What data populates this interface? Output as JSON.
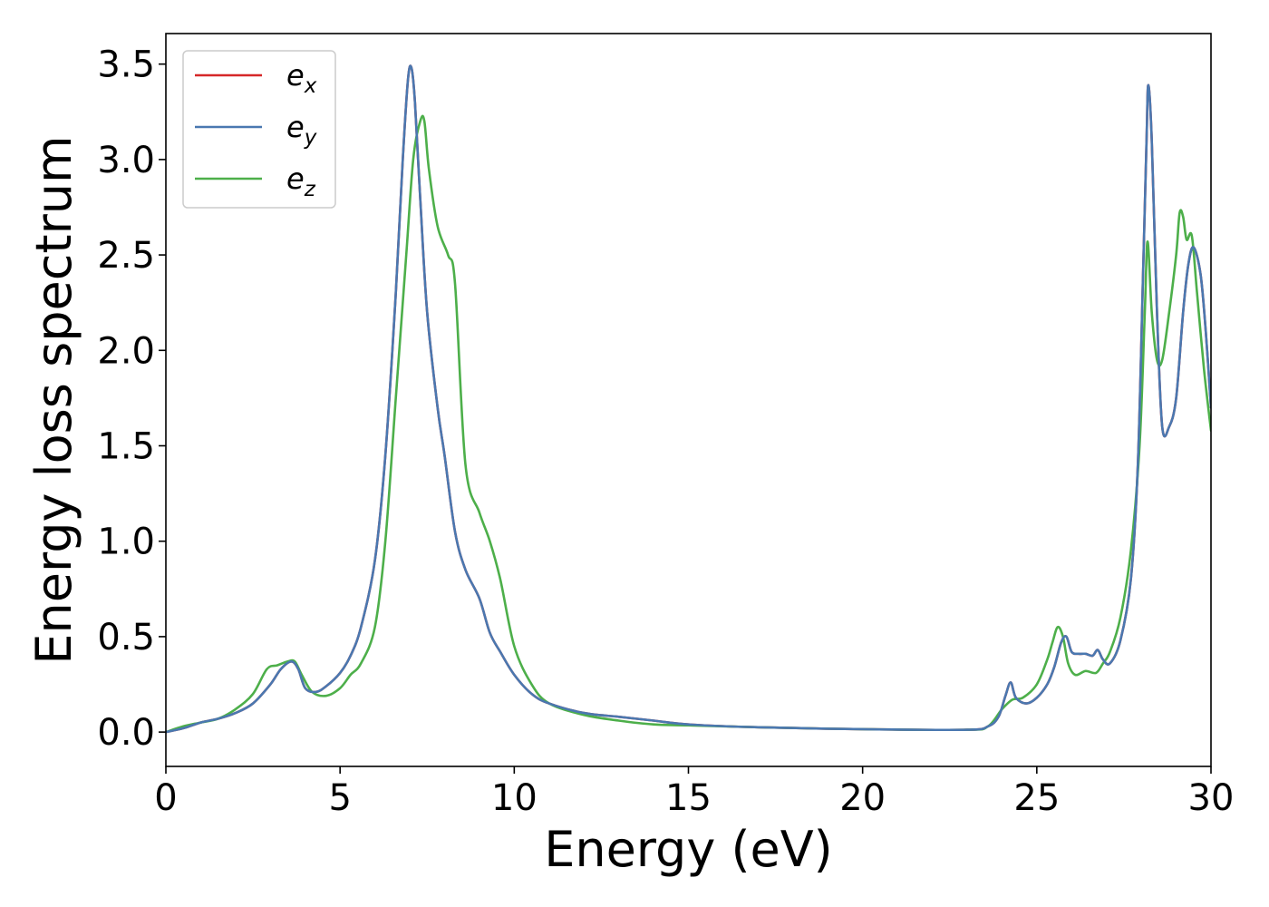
{
  "chart_data": {
    "type": "line",
    "title": "",
    "xlabel": "Energy (eV)",
    "ylabel": "Energy loss spectrum",
    "xlim": [
      0,
      30
    ],
    "ylim": [
      -0.18,
      3.66
    ],
    "xticks": [
      0,
      5,
      10,
      15,
      20,
      25,
      30
    ],
    "xtick_labels": [
      "0",
      "5",
      "10",
      "15",
      "20",
      "25",
      "30"
    ],
    "yticks": [
      0.0,
      0.5,
      1.0,
      1.5,
      2.0,
      2.5,
      3.0,
      3.5
    ],
    "ytick_labels": [
      "0.0",
      "0.5",
      "1.0",
      "1.5",
      "2.0",
      "2.5",
      "3.0",
      "3.5"
    ],
    "grid": false,
    "legend_position": "top-left",
    "series": [
      {
        "name": "e",
        "subscript": "x",
        "color": "#d62728",
        "x": [
          0,
          0.5,
          1,
          1.5,
          2,
          2.5,
          3,
          3.3,
          3.6,
          3.8,
          4,
          4.3,
          4.6,
          5,
          5.3,
          5.6,
          6,
          6.3,
          6.6,
          6.8,
          6.95,
          7.05,
          7.15,
          7.3,
          7.5,
          7.8,
          8,
          8.3,
          8.6,
          9,
          9.3,
          9.6,
          10,
          10.5,
          11,
          12,
          13,
          14,
          15,
          17,
          20,
          23,
          23.6,
          23.9,
          24.1,
          24.25,
          24.4,
          24.7,
          25,
          25.3,
          25.5,
          25.7,
          25.85,
          26,
          26.2,
          26.4,
          26.6,
          26.75,
          26.9,
          27.1,
          27.4,
          27.7,
          27.9,
          28.05,
          28.15,
          28.2,
          28.3,
          28.45,
          28.6,
          28.8,
          29,
          29.2,
          29.35,
          29.5,
          29.7,
          29.85,
          30
        ],
        "values": [
          0.0,
          0.02,
          0.05,
          0.07,
          0.1,
          0.15,
          0.25,
          0.33,
          0.37,
          0.33,
          0.23,
          0.21,
          0.24,
          0.31,
          0.4,
          0.55,
          0.9,
          1.45,
          2.3,
          3.0,
          3.42,
          3.48,
          3.3,
          2.8,
          2.2,
          1.7,
          1.45,
          1.05,
          0.85,
          0.7,
          0.52,
          0.42,
          0.3,
          0.2,
          0.15,
          0.1,
          0.08,
          0.06,
          0.04,
          0.025,
          0.015,
          0.012,
          0.03,
          0.08,
          0.19,
          0.26,
          0.18,
          0.15,
          0.18,
          0.25,
          0.34,
          0.47,
          0.5,
          0.42,
          0.41,
          0.41,
          0.4,
          0.43,
          0.38,
          0.36,
          0.48,
          0.8,
          1.4,
          2.4,
          3.1,
          3.39,
          3.1,
          2.2,
          1.6,
          1.6,
          1.75,
          2.2,
          2.45,
          2.54,
          2.4,
          2.1,
          1.7
        ]
      },
      {
        "name": "e",
        "subscript": "y",
        "color": "#4a78b0",
        "x": [
          0,
          0.5,
          1,
          1.5,
          2,
          2.5,
          3,
          3.3,
          3.6,
          3.8,
          4,
          4.3,
          4.6,
          5,
          5.3,
          5.6,
          6,
          6.3,
          6.6,
          6.8,
          6.95,
          7.05,
          7.15,
          7.3,
          7.5,
          7.8,
          8,
          8.3,
          8.6,
          9,
          9.3,
          9.6,
          10,
          10.5,
          11,
          12,
          13,
          14,
          15,
          17,
          20,
          23,
          23.6,
          23.9,
          24.1,
          24.25,
          24.4,
          24.7,
          25,
          25.3,
          25.5,
          25.7,
          25.85,
          26,
          26.2,
          26.4,
          26.6,
          26.75,
          26.9,
          27.1,
          27.4,
          27.7,
          27.9,
          28.05,
          28.15,
          28.2,
          28.3,
          28.45,
          28.6,
          28.8,
          29,
          29.2,
          29.35,
          29.5,
          29.7,
          29.85,
          30
        ],
        "values": [
          0.0,
          0.02,
          0.05,
          0.07,
          0.1,
          0.15,
          0.25,
          0.33,
          0.37,
          0.33,
          0.23,
          0.21,
          0.24,
          0.31,
          0.4,
          0.55,
          0.9,
          1.45,
          2.3,
          3.0,
          3.42,
          3.48,
          3.3,
          2.8,
          2.2,
          1.7,
          1.45,
          1.05,
          0.85,
          0.7,
          0.52,
          0.42,
          0.3,
          0.2,
          0.15,
          0.1,
          0.08,
          0.06,
          0.04,
          0.025,
          0.015,
          0.012,
          0.03,
          0.08,
          0.19,
          0.26,
          0.18,
          0.15,
          0.18,
          0.25,
          0.34,
          0.47,
          0.5,
          0.42,
          0.41,
          0.41,
          0.4,
          0.43,
          0.38,
          0.36,
          0.48,
          0.8,
          1.4,
          2.4,
          3.1,
          3.39,
          3.1,
          2.2,
          1.6,
          1.6,
          1.75,
          2.2,
          2.45,
          2.54,
          2.4,
          2.1,
          1.7
        ]
      },
      {
        "name": "e",
        "subscript": "z",
        "color": "#4daf4a",
        "x": [
          0,
          0.5,
          1,
          1.5,
          2,
          2.5,
          2.9,
          3.2,
          3.5,
          3.7,
          3.9,
          4.2,
          4.6,
          5,
          5.3,
          5.6,
          6,
          6.3,
          6.6,
          6.9,
          7.1,
          7.3,
          7.42,
          7.55,
          7.8,
          8.1,
          8.3,
          8.6,
          9,
          9.3,
          9.6,
          10,
          10.5,
          11,
          12,
          13,
          14,
          15,
          17,
          20,
          23,
          23.6,
          24,
          24.3,
          24.6,
          25,
          25.3,
          25.45,
          25.6,
          25.75,
          25.9,
          26.1,
          26.4,
          26.7,
          26.9,
          27.1,
          27.4,
          27.7,
          27.95,
          28.1,
          28.18,
          28.3,
          28.45,
          28.6,
          28.8,
          29,
          29.1,
          29.2,
          29.3,
          29.45,
          29.6,
          29.8,
          30
        ],
        "values": [
          0.0,
          0.03,
          0.05,
          0.07,
          0.12,
          0.2,
          0.33,
          0.35,
          0.37,
          0.37,
          0.3,
          0.21,
          0.19,
          0.23,
          0.3,
          0.36,
          0.55,
          1.0,
          1.75,
          2.5,
          3.0,
          3.2,
          3.2,
          2.95,
          2.65,
          2.5,
          2.35,
          1.4,
          1.15,
          1.0,
          0.8,
          0.45,
          0.25,
          0.15,
          0.09,
          0.06,
          0.04,
          0.035,
          0.025,
          0.015,
          0.012,
          0.03,
          0.12,
          0.17,
          0.18,
          0.25,
          0.38,
          0.47,
          0.55,
          0.5,
          0.36,
          0.3,
          0.32,
          0.31,
          0.36,
          0.42,
          0.6,
          0.95,
          1.5,
          2.2,
          2.57,
          2.2,
          1.95,
          1.95,
          2.2,
          2.5,
          2.72,
          2.7,
          2.58,
          2.6,
          2.3,
          1.9,
          1.58
        ]
      }
    ]
  }
}
